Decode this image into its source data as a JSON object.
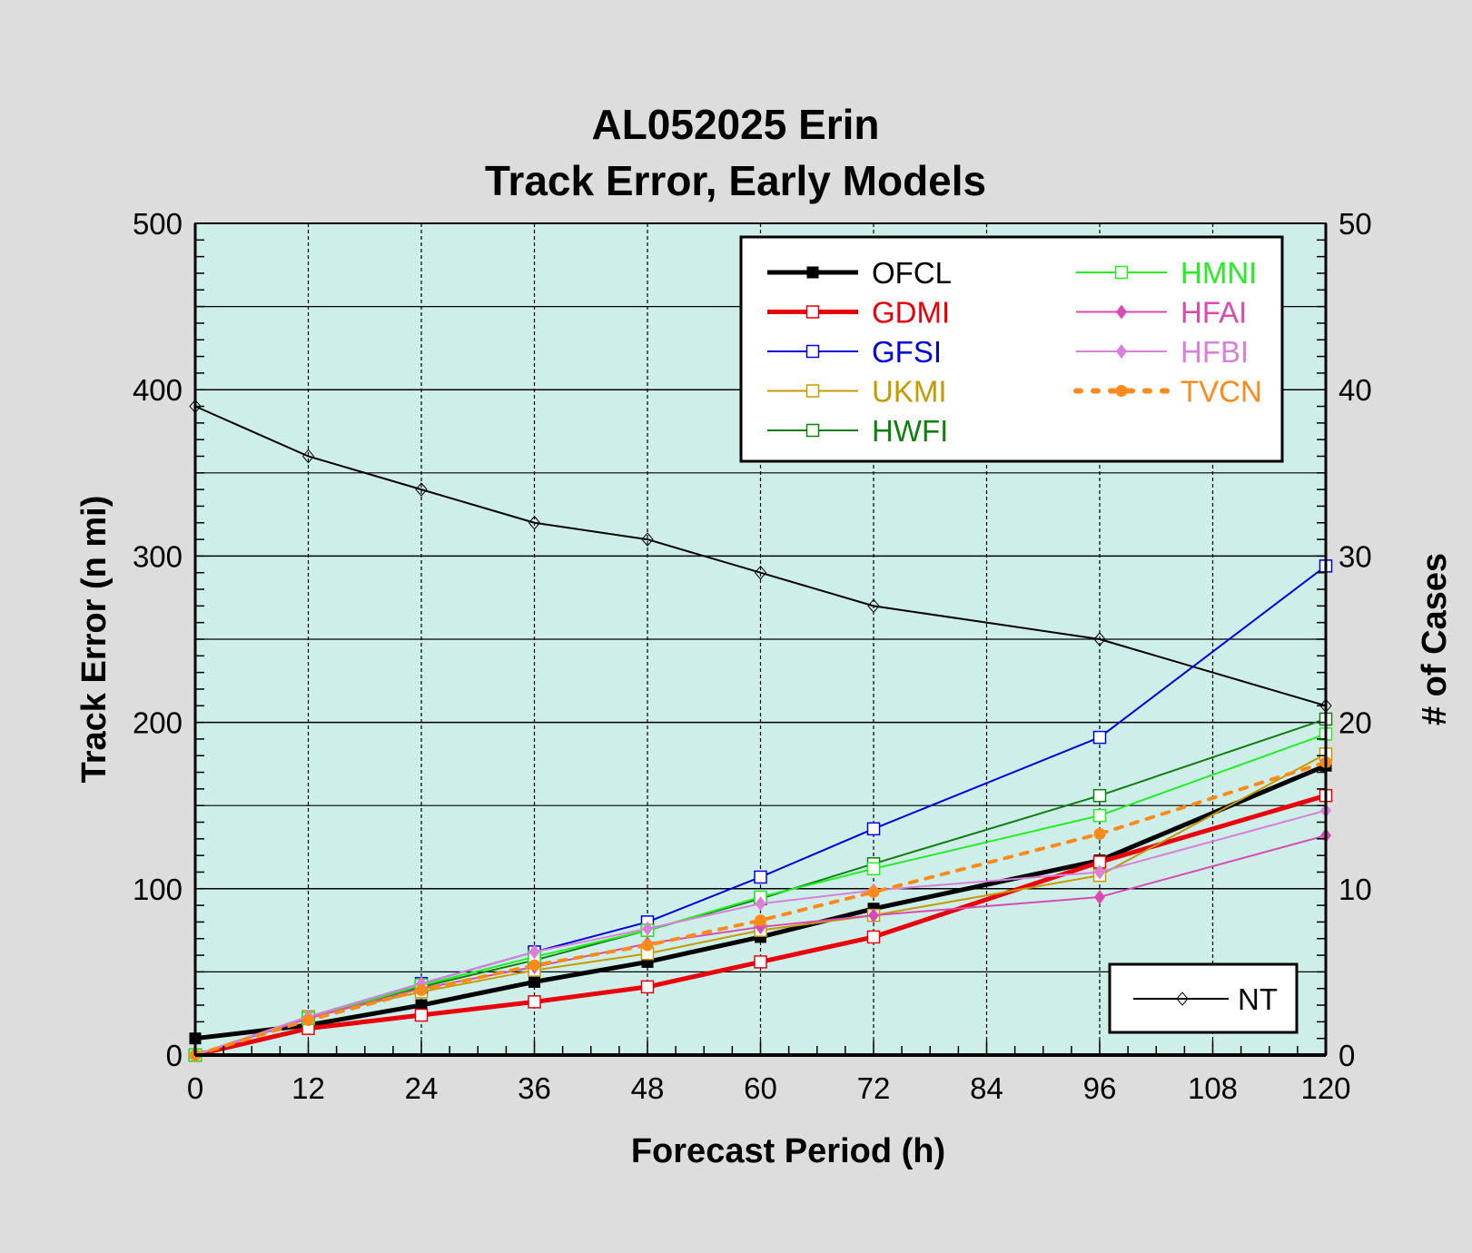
{
  "chart_data": {
    "type": "line",
    "title": [
      "AL052025 Erin",
      "Track Error, Early Models"
    ],
    "xlabel": "Forecast Period (h)",
    "ylabel": "Track Error (n mi)",
    "y2label": "# of Cases",
    "x": [
      0,
      12,
      24,
      36,
      48,
      60,
      72,
      96,
      120
    ],
    "xticks": [
      "0",
      "12",
      "24",
      "36",
      "48",
      "60",
      "72",
      "84",
      "96",
      "108",
      "120"
    ],
    "xtick_values": [
      0,
      12,
      24,
      36,
      48,
      60,
      72,
      84,
      96,
      108,
      120
    ],
    "yticks": [
      "0",
      "100",
      "200",
      "300",
      "400",
      "500"
    ],
    "y2ticks": [
      "0",
      "10",
      "20",
      "30",
      "40",
      "50"
    ],
    "xlim": [
      0,
      120
    ],
    "ylim": [
      0,
      500
    ],
    "y2lim": [
      0,
      50
    ],
    "grid": true,
    "legend_placement": "top-right",
    "series": [
      {
        "name": "OFCL",
        "color": "#000000",
        "marker": "filled-square",
        "width": 5,
        "values": [
          10,
          18,
          30,
          44,
          56,
          71,
          88,
          117,
          174
        ]
      },
      {
        "name": "GDMI",
        "color": "#e8000b",
        "marker": "open-square",
        "width": 5,
        "values": [
          0,
          16,
          24,
          32,
          41,
          56,
          71,
          116,
          156
        ]
      },
      {
        "name": "GFSI",
        "color": "#0000dd",
        "marker": "open-square",
        "width": 2,
        "values": [
          0,
          23,
          43,
          62,
          80,
          107,
          136,
          191,
          294
        ]
      },
      {
        "name": "UKMI",
        "color": "#c49a00",
        "marker": "open-square",
        "width": 2,
        "values": [
          0,
          23,
          38,
          51,
          61,
          75,
          84,
          108,
          181
        ]
      },
      {
        "name": "HWFI",
        "color": "#107f10",
        "marker": "open-square",
        "width": 2,
        "values": [
          0,
          22,
          41,
          57,
          75,
          94,
          115,
          156,
          202
        ]
      },
      {
        "name": "HMNI",
        "color": "#22ee22",
        "marker": "open-square",
        "width": 2,
        "values": [
          0,
          22,
          42,
          59,
          75,
          95,
          112,
          144,
          193
        ]
      },
      {
        "name": "HFAI",
        "color": "#d94bb0",
        "marker": "filled-diamond",
        "width": 2,
        "values": [
          0,
          22,
          40,
          53,
          67,
          77,
          84,
          95,
          132
        ]
      },
      {
        "name": "HFBI",
        "color": "#da80d8",
        "marker": "filled-diamond",
        "width": 2,
        "values": [
          0,
          23,
          43,
          62,
          76,
          91,
          99,
          110,
          147
        ]
      },
      {
        "name": "TVCN",
        "color": "#ff8a1c",
        "marker": "filled-circle",
        "width": 4,
        "dashed": true,
        "values": [
          0,
          21,
          39,
          54,
          66,
          81,
          98,
          133,
          176
        ]
      }
    ],
    "cases": {
      "name": "NT",
      "color": "#000000",
      "marker": "open-diamond",
      "axis": "right",
      "values": [
        39,
        36,
        34,
        32,
        31,
        29,
        27,
        25,
        21
      ]
    }
  }
}
